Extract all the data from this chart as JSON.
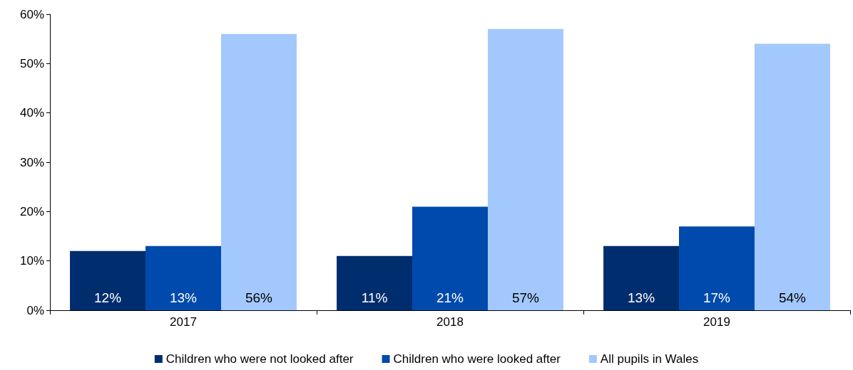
{
  "chart_data": {
    "type": "bar",
    "categories": [
      "2017",
      "2018",
      "2019"
    ],
    "series": [
      {
        "name": "Children who were not looked after",
        "color": "#002d6e",
        "values": [
          12,
          11,
          13
        ],
        "value_labels": [
          "12%",
          "11%",
          "13%"
        ]
      },
      {
        "name": "Children who were looked after",
        "color": "#004aad",
        "values": [
          13,
          21,
          17
        ],
        "value_labels": [
          "13%",
          "21%",
          "17%"
        ]
      },
      {
        "name": "All pupils in Wales",
        "color": "#a3c8fd",
        "values": [
          56,
          57,
          54
        ],
        "value_labels": [
          "56%",
          "57%",
          "54%"
        ]
      }
    ],
    "ylim": [
      0,
      60
    ],
    "yticks": [
      {
        "value": 0,
        "label": "0%"
      },
      {
        "value": 10,
        "label": "10%"
      },
      {
        "value": 20,
        "label": "20%"
      },
      {
        "value": 30,
        "label": "30%"
      },
      {
        "value": 40,
        "label": "40%"
      },
      {
        "value": 50,
        "label": "50%"
      },
      {
        "value": 60,
        "label": "60%"
      }
    ],
    "grid": false,
    "legend": "bottom"
  }
}
